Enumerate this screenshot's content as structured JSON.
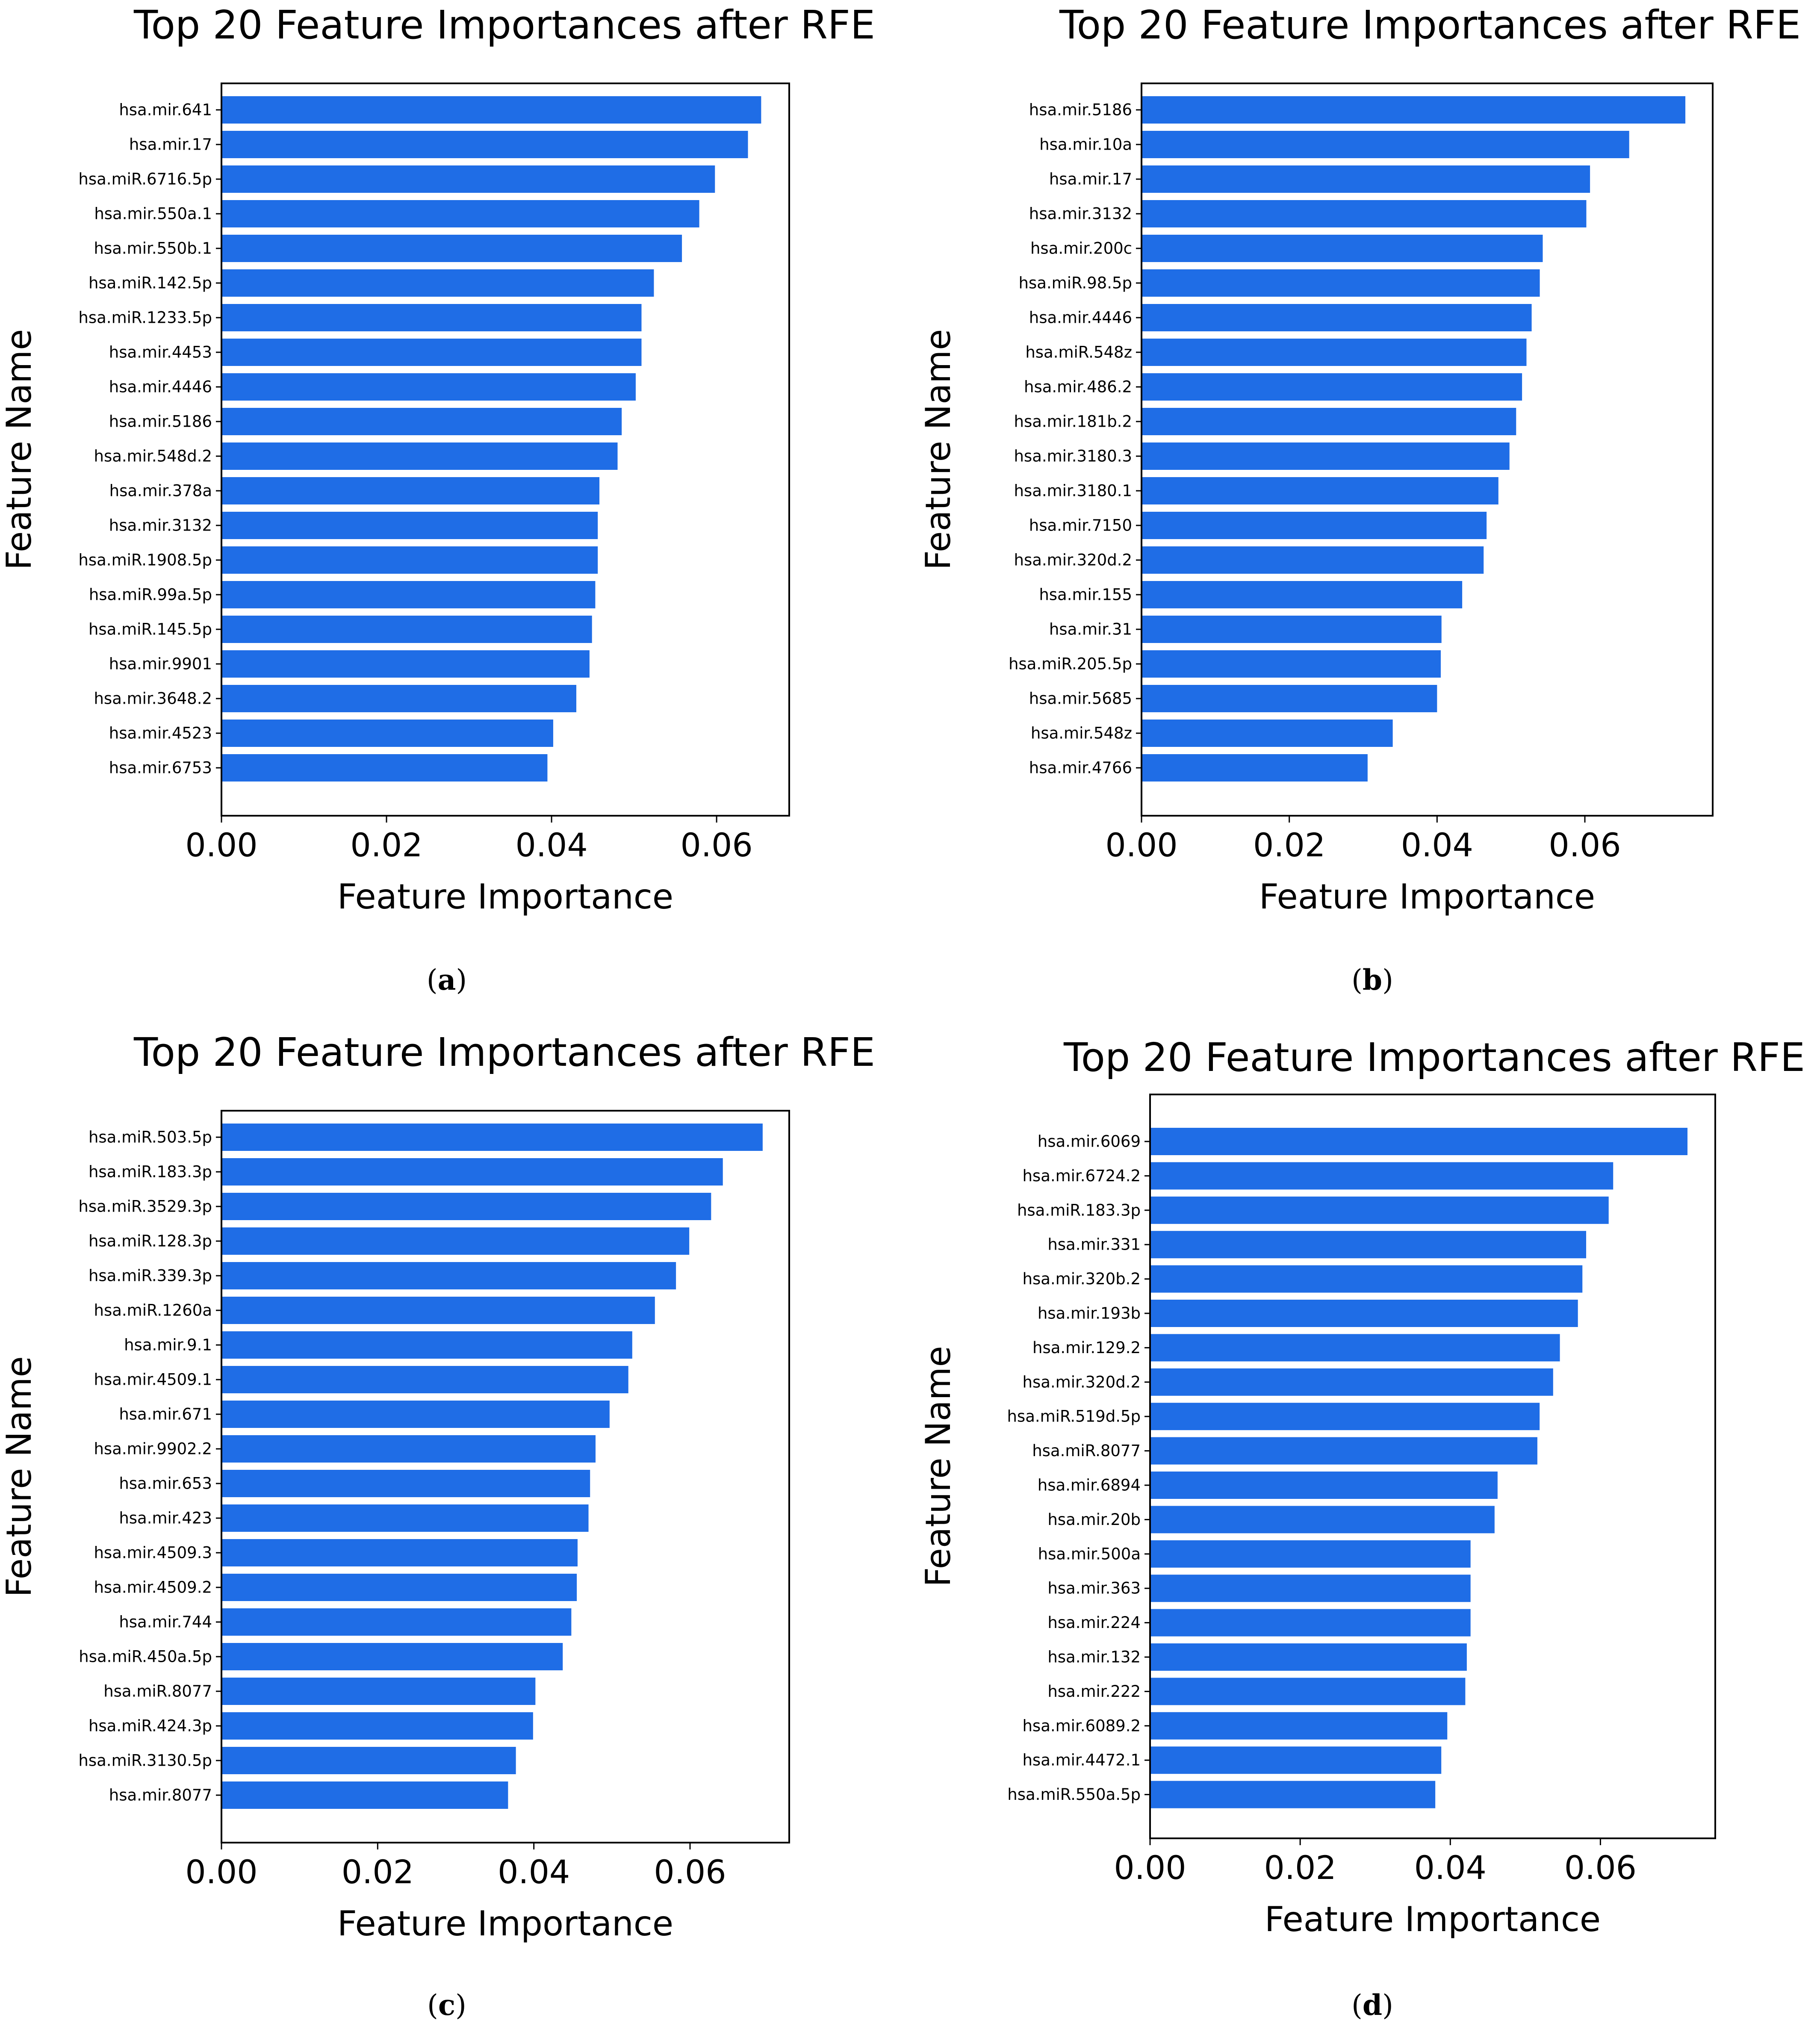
{
  "style": {
    "bar_color": "#1f6de6",
    "axis_color": "#000000",
    "text_color": "#000000"
  },
  "chart_data": [
    {
      "type": "bar",
      "orientation": "horizontal",
      "panel_label": "a",
      "title": "Top 20 Feature Importances after RFE",
      "xlabel": "Feature Importance",
      "ylabel": "Feature Name",
      "xlim": [
        0,
        0.0688
      ],
      "xticks": [
        0,
        0.02,
        0.04,
        0.06
      ],
      "xtick_labels": [
        "0.00",
        "0.02",
        "0.04",
        "0.06"
      ],
      "grid": false,
      "categories": [
        "hsa.mir.641",
        "hsa.mir.17",
        "hsa.miR.6716.5p",
        "hsa.mir.550a.1",
        "hsa.mir.550b.1",
        "hsa.miR.142.5p",
        "hsa.miR.1233.5p",
        "hsa.mir.4453",
        "hsa.mir.4446",
        "hsa.mir.5186",
        "hsa.mir.548d.2",
        "hsa.mir.378a",
        "hsa.mir.3132",
        "hsa.miR.1908.5p",
        "hsa.miR.99a.5p",
        "hsa.miR.145.5p",
        "hsa.mir.9901",
        "hsa.mir.3648.2",
        "hsa.mir.4523",
        "hsa.mir.6753"
      ],
      "values": [
        0.0654,
        0.0638,
        0.0598,
        0.0579,
        0.0558,
        0.0524,
        0.0509,
        0.0509,
        0.0502,
        0.0485,
        0.048,
        0.0458,
        0.0456,
        0.0456,
        0.0453,
        0.0449,
        0.0446,
        0.043,
        0.0402,
        0.0395
      ]
    },
    {
      "type": "bar",
      "orientation": "horizontal",
      "panel_label": "b",
      "title": "Top 20 Feature Importances after RFE",
      "xlabel": "Feature Importance",
      "ylabel": "Feature Name",
      "xlim": [
        0,
        0.0773
      ],
      "xticks": [
        0,
        0.02,
        0.04,
        0.06
      ],
      "xtick_labels": [
        "0.00",
        "0.02",
        "0.04",
        "0.06"
      ],
      "grid": false,
      "categories": [
        "hsa.mir.5186",
        "hsa.mir.10a",
        "hsa.mir.17",
        "hsa.mir.3132",
        "hsa.mir.200c",
        "hsa.miR.98.5p",
        "hsa.mir.4446",
        "hsa.miR.548z",
        "hsa.mir.486.2",
        "hsa.mir.181b.2",
        "hsa.mir.3180.3",
        "hsa.mir.3180.1",
        "hsa.mir.7150",
        "hsa.mir.320d.2",
        "hsa.mir.155",
        "hsa.mir.31",
        "hsa.miR.205.5p",
        "hsa.mir.5685",
        "hsa.mir.548z",
        "hsa.mir.4766"
      ],
      "values": [
        0.0736,
        0.066,
        0.0607,
        0.0602,
        0.0543,
        0.0539,
        0.0528,
        0.0521,
        0.0515,
        0.0507,
        0.0498,
        0.0483,
        0.0467,
        0.0463,
        0.0434,
        0.0406,
        0.0405,
        0.04,
        0.034,
        0.0306
      ]
    },
    {
      "type": "bar",
      "orientation": "horizontal",
      "panel_label": "c",
      "title": "Top 20 Feature Importances after RFE",
      "xlabel": "Feature Importance",
      "ylabel": "Feature Name",
      "xlim": [
        0,
        0.0727
      ],
      "xticks": [
        0,
        0.02,
        0.04,
        0.06
      ],
      "xtick_labels": [
        "0.00",
        "0.02",
        "0.04",
        "0.06"
      ],
      "grid": false,
      "categories": [
        "hsa.miR.503.5p",
        "hsa.miR.183.3p",
        "hsa.miR.3529.3p",
        "hsa.miR.128.3p",
        "hsa.miR.339.3p",
        "hsa.miR.1260a",
        "hsa.mir.9.1",
        "hsa.mir.4509.1",
        "hsa.mir.671",
        "hsa.mir.9902.2",
        "hsa.mir.653",
        "hsa.mir.423",
        "hsa.mir.4509.3",
        "hsa.mir.4509.2",
        "hsa.mir.744",
        "hsa.miR.450a.5p",
        "hsa.miR.8077",
        "hsa.miR.424.3p",
        "hsa.miR.3130.5p",
        "hsa.mir.8077"
      ],
      "values": [
        0.0693,
        0.0642,
        0.0627,
        0.0599,
        0.0582,
        0.0555,
        0.0526,
        0.0521,
        0.0497,
        0.0479,
        0.0472,
        0.047,
        0.0456,
        0.0455,
        0.0448,
        0.0437,
        0.0402,
        0.0399,
        0.0377,
        0.0367
      ]
    },
    {
      "type": "bar",
      "orientation": "horizontal",
      "panel_label": "d",
      "title": "Top 20 Feature Importances after RFE",
      "xlabel": "Feature Importance",
      "ylabel": "Feature Name",
      "xlim": [
        0,
        0.0753
      ],
      "xticks": [
        0,
        0.02,
        0.04,
        0.06
      ],
      "xtick_labels": [
        "0.00",
        "0.02",
        "0.04",
        "0.06"
      ],
      "grid": false,
      "categories": [
        "hsa.mir.6069",
        "hsa.mir.6724.2",
        "hsa.miR.183.3p",
        "hsa.mir.331",
        "hsa.mir.320b.2",
        "hsa.mir.193b",
        "hsa.mir.129.2",
        "hsa.mir.320d.2",
        "hsa.miR.519d.5p",
        "hsa.miR.8077",
        "hsa.mir.6894",
        "hsa.mir.20b",
        "hsa.mir.500a",
        "hsa.mir.363",
        "hsa.mir.224",
        "hsa.mir.132",
        "hsa.mir.222",
        "hsa.mir.6089.2",
        "hsa.mir.4472.1",
        "hsa.miR.550a.5p"
      ],
      "values": [
        0.0716,
        0.0617,
        0.0611,
        0.0581,
        0.0576,
        0.057,
        0.0546,
        0.0537,
        0.0519,
        0.0516,
        0.0463,
        0.0459,
        0.0427,
        0.0427,
        0.0427,
        0.0422,
        0.042,
        0.0396,
        0.0388,
        0.038
      ]
    }
  ]
}
